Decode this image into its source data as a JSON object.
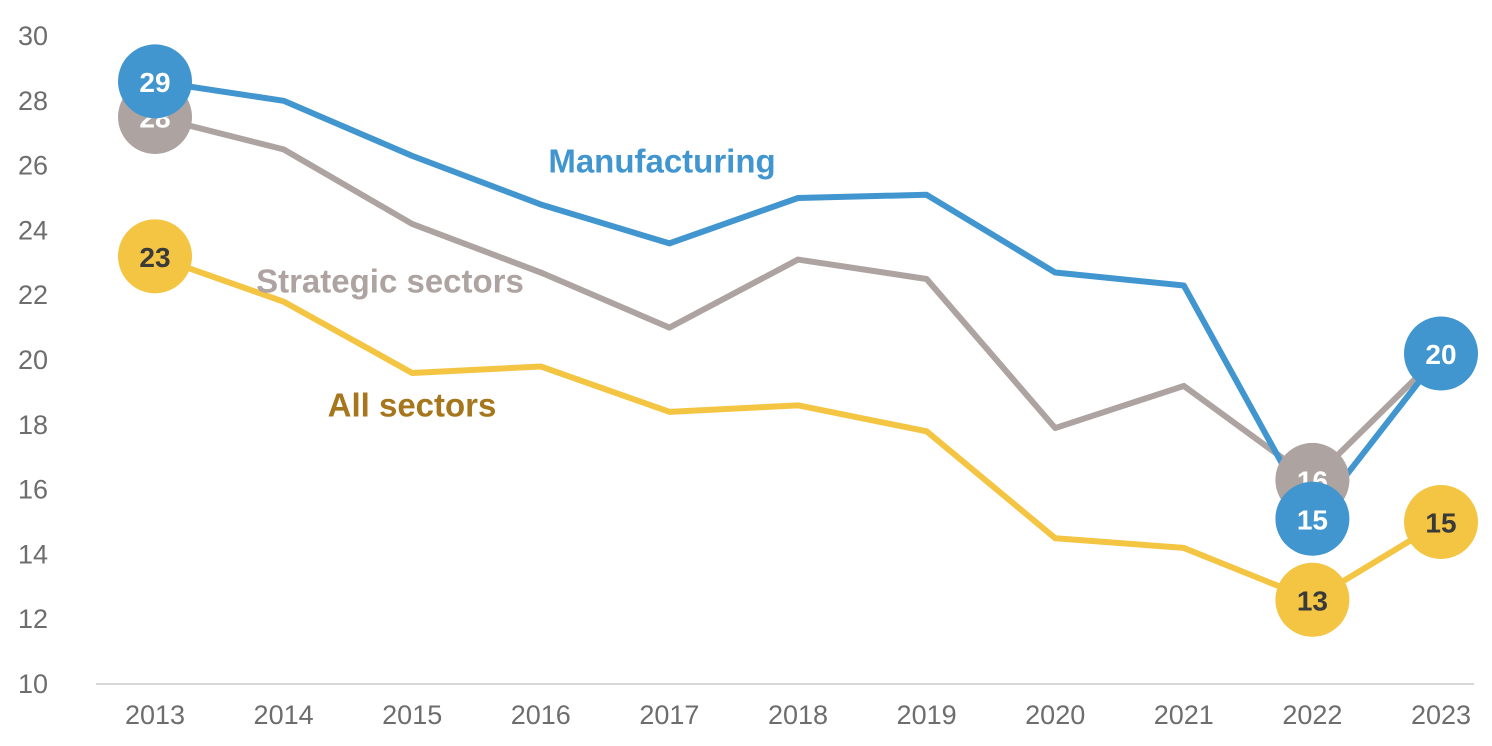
{
  "chart_data": {
    "type": "line",
    "title": "",
    "xlabel": "",
    "ylabel": "",
    "ylim": [
      10,
      30
    ],
    "yticks": [
      "10",
      "12",
      "14",
      "16",
      "18",
      "20",
      "22",
      "24",
      "26",
      "28",
      "30"
    ],
    "categories": [
      "2013",
      "2014",
      "2015",
      "2016",
      "2017",
      "2018",
      "2019",
      "2020",
      "2021",
      "2022",
      "2023"
    ],
    "grid": false,
    "series": [
      {
        "name": "All sectors",
        "color": "#f4c542",
        "label_color": "#a6761d",
        "marker_text_color": "#3a3a3a",
        "values": [
          23.2,
          21.8,
          19.6,
          19.8,
          18.4,
          18.6,
          17.8,
          14.5,
          14.2,
          12.6,
          15.0
        ],
        "markers": [
          {
            "index": 0,
            "text": "23"
          },
          {
            "index": 9,
            "text": "13"
          },
          {
            "index": 10,
            "text": "15"
          }
        ]
      },
      {
        "name": "Strategic sectors",
        "color": "#ada3a0",
        "label_color": "#ada3a0",
        "marker_text_color": "#ffffff",
        "values": [
          27.5,
          26.5,
          24.2,
          22.7,
          21.0,
          23.1,
          22.5,
          17.9,
          19.2,
          16.3,
          20.2
        ],
        "markers": [
          {
            "index": 0,
            "text": "28"
          },
          {
            "index": 9,
            "text": "16"
          }
        ]
      },
      {
        "name": "Manufacturing",
        "color": "#4196cf",
        "label_color": "#4196cf",
        "marker_text_color": "#ffffff",
        "values": [
          28.6,
          28.0,
          26.3,
          24.8,
          23.6,
          25.0,
          25.1,
          22.7,
          22.3,
          15.1,
          20.2
        ],
        "markers": [
          {
            "index": 0,
            "text": "29"
          },
          {
            "index": 9,
            "text": "15"
          },
          {
            "index": 10,
            "text": "20"
          }
        ]
      }
    ],
    "annotations": [
      {
        "series": "Manufacturing",
        "text": "Manufacturing"
      },
      {
        "series": "Strategic sectors",
        "text": "Strategic sectors"
      },
      {
        "series": "All sectors",
        "text": "All sectors"
      }
    ]
  }
}
